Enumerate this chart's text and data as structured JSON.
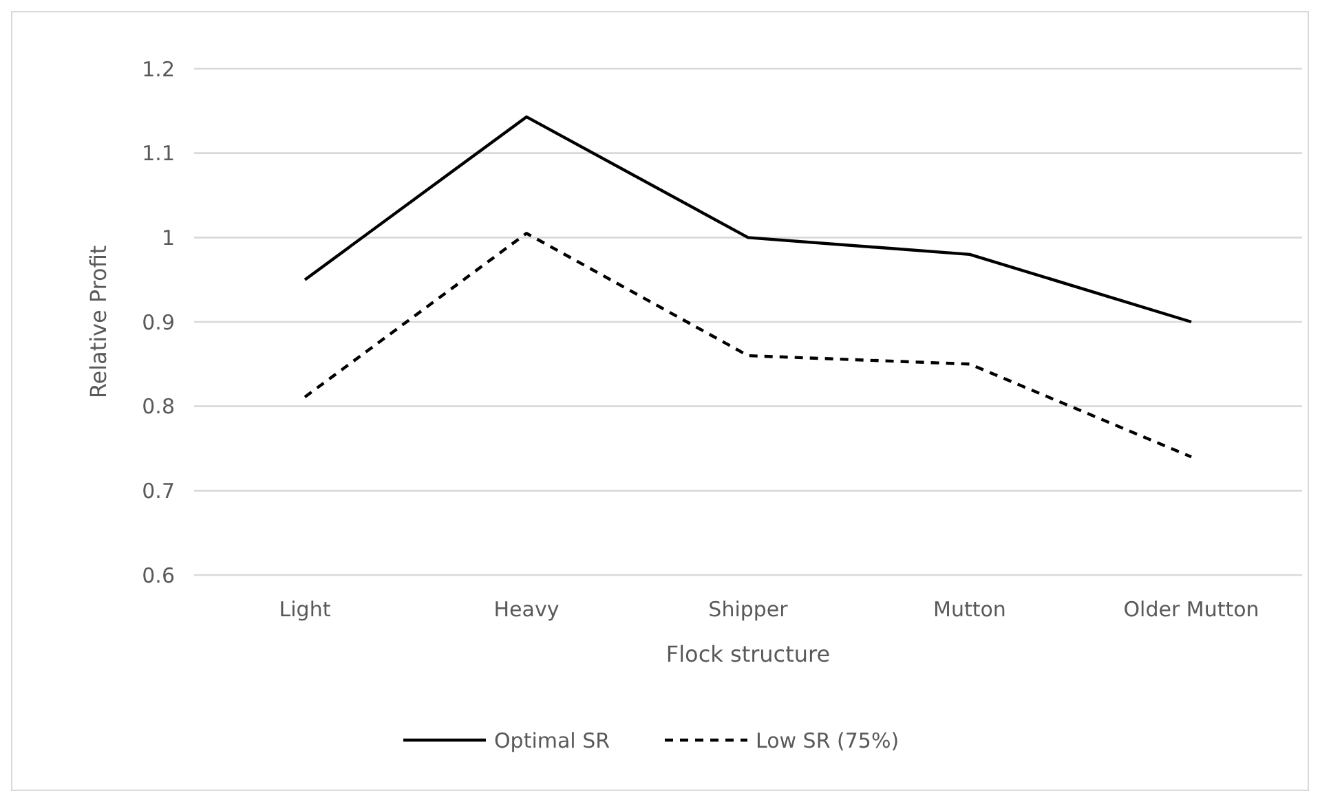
{
  "chart_data": {
    "type": "line",
    "xlabel": "Flock structure",
    "ylabel": "Relative Profit",
    "categories": [
      "Light",
      "Heavy",
      "Shipper",
      "Mutton",
      "Older Mutton"
    ],
    "series": [
      {
        "name": "Optimal SR",
        "color": "#000000",
        "line_style": "solid",
        "values": [
          0.95,
          1.143,
          1.0,
          0.98,
          0.9
        ]
      },
      {
        "name": "Low SR (75%)",
        "color": "#000000",
        "line_style": "dashed",
        "values": [
          0.811,
          1.005,
          0.86,
          0.85,
          0.74
        ]
      }
    ],
    "ylim": [
      0.6,
      1.2
    ],
    "yticks": [
      0.6,
      0.7,
      0.8,
      0.9,
      {
        "value": 1,
        "label": "1"
      },
      1.1,
      1.2
    ],
    "grid": "y",
    "legend": "bottom",
    "marker": "none"
  }
}
